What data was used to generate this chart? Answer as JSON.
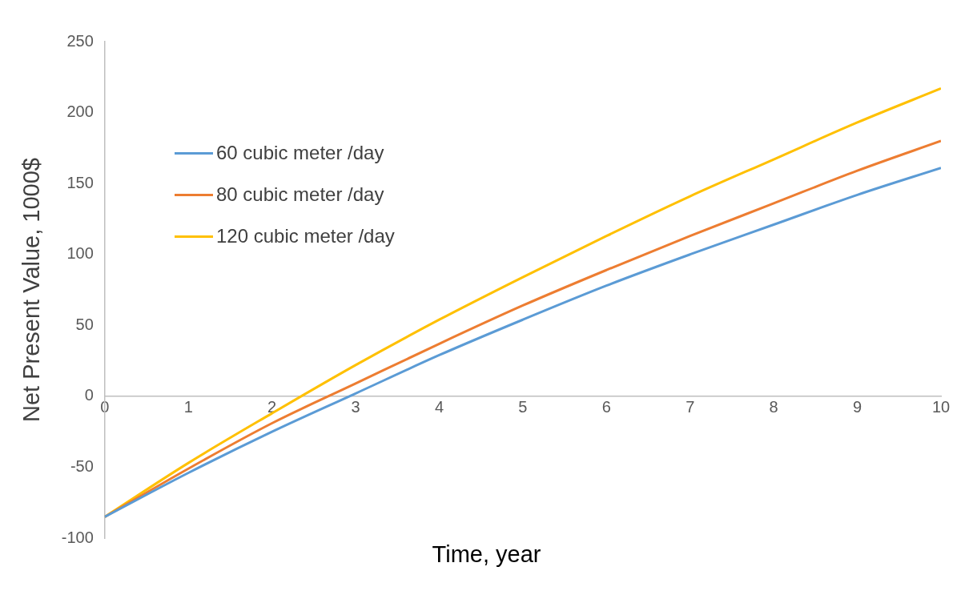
{
  "chart_data": {
    "type": "line",
    "xlabel": "Time, year",
    "ylabel": "Net Present Value, 1000$",
    "x": [
      0,
      1,
      2,
      3,
      4,
      5,
      6,
      7,
      8,
      9,
      10
    ],
    "series": [
      {
        "name": "60 cubic meter /day",
        "color": "#5b9bd5",
        "values": [
          -85,
          -54,
          -25,
          2,
          29,
          54,
          78,
          100,
          121,
          142,
          161
        ]
      },
      {
        "name": "80 cubic meter /day",
        "color": "#ed7d31",
        "values": [
          -85,
          -51,
          -19,
          9,
          37,
          64,
          89,
          113,
          136,
          159,
          180
        ]
      },
      {
        "name": "120 cubic meter /day",
        "color": "#ffc000",
        "values": [
          -85,
          -47,
          -12,
          22,
          54,
          84,
          113,
          141,
          167,
          193,
          217
        ]
      }
    ],
    "xlim": [
      0,
      10
    ],
    "xticks": [
      0,
      1,
      2,
      3,
      4,
      5,
      6,
      7,
      8,
      9,
      10
    ],
    "ylim": [
      -100,
      250
    ],
    "yticks": [
      -100,
      -50,
      0,
      50,
      100,
      150,
      200,
      250
    ],
    "grid": false,
    "legend": "top left",
    "marker": "none",
    "line_style": "solid"
  }
}
